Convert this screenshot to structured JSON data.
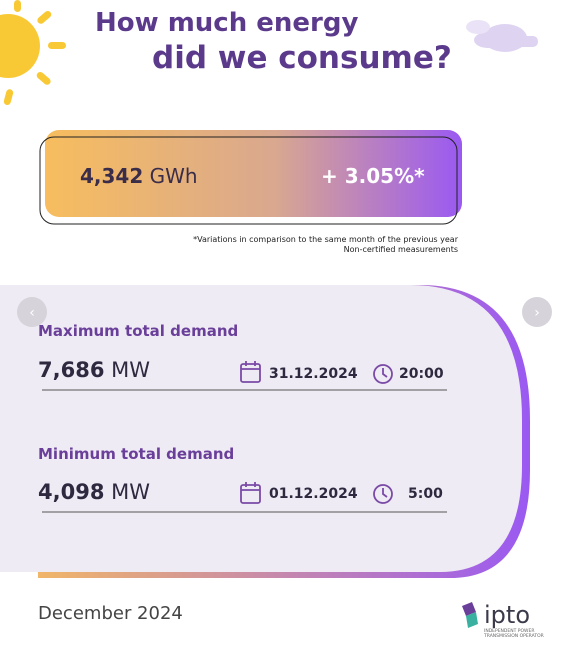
{
  "title": {
    "line1": "How much energy",
    "line2": "did we consume?"
  },
  "energy": {
    "value": "4,342",
    "unit": "GWh",
    "change": "+ 3.05%*"
  },
  "notes": [
    "*Variations in comparison to the same month of the previous year",
    "Non-certified measurements"
  ],
  "demand": [
    {
      "label": "Maximum total demand",
      "value": "7,686",
      "unit": "MW",
      "date": "31.12.2024",
      "time": "20:00"
    },
    {
      "label": "Minimum total demand",
      "value": "4,098",
      "unit": "MW",
      "date": "01.12.2024",
      "time": "5:00"
    }
  ],
  "footer": {
    "period": "December 2024",
    "logo": "ipto",
    "logo_subtitle": "INDEPENDENT POWER TRANSMISSION OPERATOR"
  }
}
